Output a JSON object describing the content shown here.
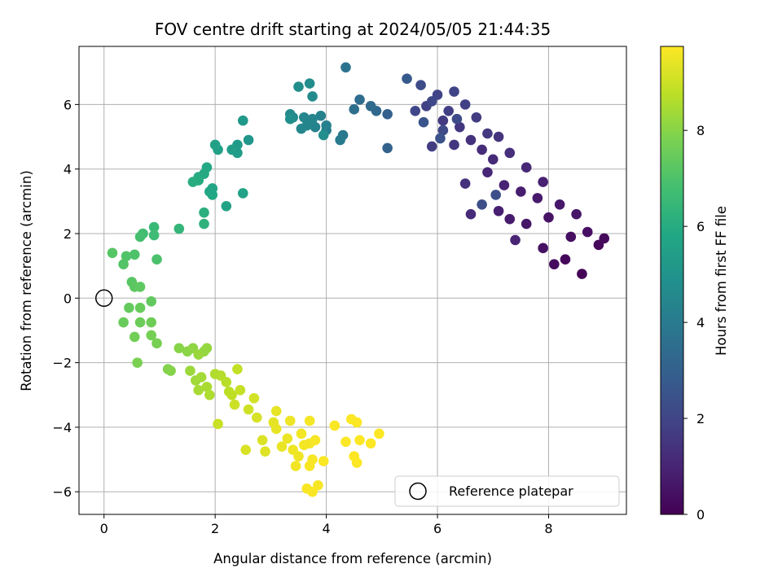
{
  "chart_data": {
    "type": "scatter",
    "title": "FOV centre drift starting at 2024/05/05 21:44:35",
    "xlabel": "Angular distance from reference (arcmin)",
    "ylabel": "Rotation from reference (arcmin)",
    "xlim": [
      -0.45,
      9.4
    ],
    "ylim": [
      -6.7,
      7.8
    ],
    "x_ticks": [
      0,
      2,
      4,
      6,
      8
    ],
    "y_ticks": [
      -6,
      -4,
      -2,
      0,
      2,
      4,
      6
    ],
    "grid": true,
    "colorbar": {
      "label": "Hours from first FF file",
      "range": [
        0,
        9.75
      ],
      "ticks": [
        0,
        2,
        4,
        6,
        8
      ],
      "colormap": "viridis"
    },
    "reference_point": {
      "x": 0,
      "y": 0,
      "label": "Reference platepar",
      "marker": "open-circle"
    },
    "legend": {
      "position": "lower-right",
      "entries": [
        "Reference platepar"
      ]
    },
    "series": [
      {
        "color_by": "hours",
        "points": [
          {
            "x": 8.6,
            "y": 0.75,
            "h": 0.05
          },
          {
            "x": 8.3,
            "y": 1.2,
            "h": 0.15
          },
          {
            "x": 8.9,
            "y": 1.65,
            "h": 0.2
          },
          {
            "x": 9.0,
            "y": 1.85,
            "h": 0.25
          },
          {
            "x": 8.1,
            "y": 1.05,
            "h": 0.3
          },
          {
            "x": 8.4,
            "y": 1.9,
            "h": 0.35
          },
          {
            "x": 8.7,
            "y": 2.05,
            "h": 0.4
          },
          {
            "x": 7.9,
            "y": 1.55,
            "h": 0.45
          },
          {
            "x": 8.0,
            "y": 2.5,
            "h": 0.5
          },
          {
            "x": 8.5,
            "y": 2.6,
            "h": 0.55
          },
          {
            "x": 7.6,
            "y": 2.3,
            "h": 0.6
          },
          {
            "x": 8.2,
            "y": 2.9,
            "h": 0.65
          },
          {
            "x": 7.8,
            "y": 3.1,
            "h": 0.7
          },
          {
            "x": 7.3,
            "y": 2.45,
            "h": 0.75
          },
          {
            "x": 7.5,
            "y": 3.3,
            "h": 0.8
          },
          {
            "x": 7.1,
            "y": 2.7,
            "h": 0.85
          },
          {
            "x": 7.9,
            "y": 3.6,
            "h": 0.9
          },
          {
            "x": 7.2,
            "y": 3.5,
            "h": 0.95
          },
          {
            "x": 7.4,
            "y": 1.8,
            "h": 1.0
          },
          {
            "x": 6.9,
            "y": 3.9,
            "h": 1.05
          },
          {
            "x": 7.6,
            "y": 4.05,
            "h": 1.1
          },
          {
            "x": 6.6,
            "y": 2.6,
            "h": 1.15
          },
          {
            "x": 7.0,
            "y": 4.3,
            "h": 1.2
          },
          {
            "x": 6.8,
            "y": 4.6,
            "h": 1.25
          },
          {
            "x": 7.3,
            "y": 4.5,
            "h": 1.3
          },
          {
            "x": 6.5,
            "y": 3.55,
            "h": 1.35
          },
          {
            "x": 6.6,
            "y": 4.9,
            "h": 1.4
          },
          {
            "x": 7.1,
            "y": 5.0,
            "h": 1.45
          },
          {
            "x": 6.3,
            "y": 4.75,
            "h": 1.5
          },
          {
            "x": 6.4,
            "y": 5.3,
            "h": 1.55
          },
          {
            "x": 6.9,
            "y": 5.1,
            "h": 1.6
          },
          {
            "x": 6.1,
            "y": 5.5,
            "h": 1.65
          },
          {
            "x": 6.7,
            "y": 5.6,
            "h": 1.7
          },
          {
            "x": 5.9,
            "y": 4.7,
            "h": 1.75
          },
          {
            "x": 6.2,
            "y": 5.8,
            "h": 1.8
          },
          {
            "x": 6.5,
            "y": 6.0,
            "h": 1.85
          },
          {
            "x": 5.8,
            "y": 5.95,
            "h": 1.9
          },
          {
            "x": 6.0,
            "y": 6.3,
            "h": 1.95
          },
          {
            "x": 6.3,
            "y": 6.4,
            "h": 2.0
          },
          {
            "x": 5.6,
            "y": 5.8,
            "h": 2.05
          },
          {
            "x": 5.9,
            "y": 6.1,
            "h": 2.1
          },
          {
            "x": 6.1,
            "y": 5.2,
            "h": 2.15
          },
          {
            "x": 5.7,
            "y": 6.6,
            "h": 2.2
          },
          {
            "x": 6.35,
            "y": 5.55,
            "h": 2.25
          },
          {
            "x": 6.8,
            "y": 2.9,
            "h": 2.3
          },
          {
            "x": 7.05,
            "y": 3.2,
            "h": 2.35
          },
          {
            "x": 6.05,
            "y": 4.95,
            "h": 2.45
          },
          {
            "x": 5.75,
            "y": 5.45,
            "h": 2.55
          },
          {
            "x": 5.45,
            "y": 6.8,
            "h": 2.75
          },
          {
            "x": 5.1,
            "y": 5.7,
            "h": 3.0
          },
          {
            "x": 5.1,
            "y": 4.65,
            "h": 3.1
          },
          {
            "x": 4.9,
            "y": 5.8,
            "h": 3.25
          },
          {
            "x": 4.8,
            "y": 5.95,
            "h": 3.35
          },
          {
            "x": 4.6,
            "y": 6.15,
            "h": 3.45
          },
          {
            "x": 4.5,
            "y": 5.85,
            "h": 3.55
          },
          {
            "x": 4.35,
            "y": 7.15,
            "h": 3.7
          },
          {
            "x": 4.3,
            "y": 5.05,
            "h": 3.9
          },
          {
            "x": 4.25,
            "y": 4.9,
            "h": 4.0
          },
          {
            "x": 4.0,
            "y": 5.2,
            "h": 4.1
          },
          {
            "x": 4.0,
            "y": 5.35,
            "h": 4.2
          },
          {
            "x": 3.9,
            "y": 5.65,
            "h": 4.25
          },
          {
            "x": 3.8,
            "y": 5.3,
            "h": 4.3
          },
          {
            "x": 3.75,
            "y": 5.55,
            "h": 4.35
          },
          {
            "x": 3.65,
            "y": 5.35,
            "h": 4.4
          },
          {
            "x": 3.6,
            "y": 5.6,
            "h": 4.45
          },
          {
            "x": 3.55,
            "y": 5.25,
            "h": 4.5
          },
          {
            "x": 3.4,
            "y": 5.6,
            "h": 4.55
          },
          {
            "x": 3.35,
            "y": 5.7,
            "h": 4.6
          },
          {
            "x": 3.75,
            "y": 6.25,
            "h": 4.65
          },
          {
            "x": 3.7,
            "y": 6.65,
            "h": 4.7
          },
          {
            "x": 3.5,
            "y": 6.55,
            "h": 4.75
          },
          {
            "x": 3.95,
            "y": 5.05,
            "h": 4.8
          },
          {
            "x": 3.35,
            "y": 5.55,
            "h": 4.85
          },
          {
            "x": 2.6,
            "y": 4.9,
            "h": 5.1
          },
          {
            "x": 2.5,
            "y": 5.5,
            "h": 5.2
          },
          {
            "x": 2.4,
            "y": 4.75,
            "h": 5.3
          },
          {
            "x": 2.4,
            "y": 4.5,
            "h": 5.35
          },
          {
            "x": 2.3,
            "y": 4.6,
            "h": 5.4
          },
          {
            "x": 2.05,
            "y": 4.6,
            "h": 5.5
          },
          {
            "x": 2.0,
            "y": 4.75,
            "h": 5.55
          },
          {
            "x": 2.5,
            "y": 3.25,
            "h": 5.6
          },
          {
            "x": 2.2,
            "y": 2.85,
            "h": 5.65
          },
          {
            "x": 1.95,
            "y": 3.4,
            "h": 5.7
          },
          {
            "x": 1.9,
            "y": 3.3,
            "h": 5.75
          },
          {
            "x": 1.95,
            "y": 3.2,
            "h": 5.8
          },
          {
            "x": 1.85,
            "y": 4.05,
            "h": 5.85
          },
          {
            "x": 1.8,
            "y": 3.85,
            "h": 5.9
          },
          {
            "x": 1.7,
            "y": 3.75,
            "h": 5.95
          },
          {
            "x": 1.7,
            "y": 3.65,
            "h": 6.0
          },
          {
            "x": 1.6,
            "y": 3.6,
            "h": 6.05
          },
          {
            "x": 1.8,
            "y": 2.65,
            "h": 6.15
          },
          {
            "x": 1.8,
            "y": 2.3,
            "h": 6.25
          },
          {
            "x": 1.35,
            "y": 2.15,
            "h": 6.4
          },
          {
            "x": 0.9,
            "y": 2.2,
            "h": 6.55
          },
          {
            "x": 0.9,
            "y": 1.95,
            "h": 6.65
          },
          {
            "x": 0.7,
            "y": 2.0,
            "h": 6.75
          },
          {
            "x": 0.65,
            "y": 1.9,
            "h": 6.85
          },
          {
            "x": 0.95,
            "y": 1.2,
            "h": 6.95
          },
          {
            "x": 0.55,
            "y": 1.35,
            "h": 7.0
          },
          {
            "x": 0.4,
            "y": 1.3,
            "h": 7.05
          },
          {
            "x": 0.35,
            "y": 1.05,
            "h": 7.1
          },
          {
            "x": 0.15,
            "y": 1.4,
            "h": 7.15
          },
          {
            "x": 0.5,
            "y": 0.5,
            "h": 7.2
          },
          {
            "x": 0.55,
            "y": 0.35,
            "h": 7.25
          },
          {
            "x": 0.65,
            "y": 0.35,
            "h": 7.3
          },
          {
            "x": 0.85,
            "y": -0.1,
            "h": 7.35
          },
          {
            "x": 0.45,
            "y": -0.3,
            "h": 7.4
          },
          {
            "x": 0.65,
            "y": -0.3,
            "h": 7.45
          },
          {
            "x": 0.35,
            "y": -0.75,
            "h": 7.5
          },
          {
            "x": 0.65,
            "y": -0.75,
            "h": 7.55
          },
          {
            "x": 0.85,
            "y": -0.75,
            "h": 7.6
          },
          {
            "x": 0.55,
            "y": -1.2,
            "h": 7.65
          },
          {
            "x": 0.85,
            "y": -1.15,
            "h": 7.7
          },
          {
            "x": 0.95,
            "y": -1.4,
            "h": 7.75
          },
          {
            "x": 0.6,
            "y": -2.0,
            "h": 7.8
          },
          {
            "x": 1.15,
            "y": -2.2,
            "h": 7.9
          },
          {
            "x": 1.2,
            "y": -2.25,
            "h": 7.95
          },
          {
            "x": 1.35,
            "y": -1.55,
            "h": 8.0
          },
          {
            "x": 1.5,
            "y": -1.65,
            "h": 8.05
          },
          {
            "x": 1.6,
            "y": -1.55,
            "h": 8.1
          },
          {
            "x": 1.8,
            "y": -1.65,
            "h": 8.15
          },
          {
            "x": 1.85,
            "y": -1.55,
            "h": 8.2
          },
          {
            "x": 1.7,
            "y": -1.75,
            "h": 8.25
          },
          {
            "x": 1.55,
            "y": -2.25,
            "h": 8.3
          },
          {
            "x": 1.65,
            "y": -2.55,
            "h": 8.35
          },
          {
            "x": 1.75,
            "y": -2.45,
            "h": 8.4
          },
          {
            "x": 1.7,
            "y": -2.85,
            "h": 8.45
          },
          {
            "x": 1.85,
            "y": -2.75,
            "h": 8.5
          },
          {
            "x": 1.9,
            "y": -3.0,
            "h": 8.55
          },
          {
            "x": 2.0,
            "y": -2.35,
            "h": 8.6
          },
          {
            "x": 2.1,
            "y": -2.4,
            "h": 8.65
          },
          {
            "x": 2.2,
            "y": -2.6,
            "h": 8.7
          },
          {
            "x": 2.25,
            "y": -2.9,
            "h": 8.75
          },
          {
            "x": 2.3,
            "y": -3.0,
            "h": 8.8
          },
          {
            "x": 2.4,
            "y": -2.2,
            "h": 8.85
          },
          {
            "x": 2.45,
            "y": -2.85,
            "h": 8.9
          },
          {
            "x": 2.05,
            "y": -3.9,
            "h": 8.95
          },
          {
            "x": 2.35,
            "y": -3.3,
            "h": 9.0
          },
          {
            "x": 2.6,
            "y": -3.45,
            "h": 9.05
          },
          {
            "x": 2.7,
            "y": -3.1,
            "h": 9.1
          },
          {
            "x": 2.75,
            "y": -3.7,
            "h": 9.15
          },
          {
            "x": 2.55,
            "y": -4.7,
            "h": 9.2
          },
          {
            "x": 2.85,
            "y": -4.4,
            "h": 9.25
          },
          {
            "x": 2.9,
            "y": -4.75,
            "h": 9.3
          },
          {
            "x": 3.05,
            "y": -3.85,
            "h": 9.35
          },
          {
            "x": 3.1,
            "y": -3.5,
            "h": 9.4
          },
          {
            "x": 3.1,
            "y": -4.05,
            "h": 9.42
          },
          {
            "x": 3.2,
            "y": -4.6,
            "h": 9.45
          },
          {
            "x": 3.3,
            "y": -4.35,
            "h": 9.48
          },
          {
            "x": 3.35,
            "y": -3.8,
            "h": 9.5
          },
          {
            "x": 3.4,
            "y": -4.7,
            "h": 9.52
          },
          {
            "x": 3.5,
            "y": -4.9,
            "h": 9.54
          },
          {
            "x": 3.45,
            "y": -5.2,
            "h": 9.56
          },
          {
            "x": 3.55,
            "y": -4.2,
            "h": 9.58
          },
          {
            "x": 3.6,
            "y": -4.55,
            "h": 9.6
          },
          {
            "x": 3.7,
            "y": -4.5,
            "h": 9.62
          },
          {
            "x": 3.7,
            "y": -3.8,
            "h": 9.63
          },
          {
            "x": 3.75,
            "y": -5.0,
            "h": 9.64
          },
          {
            "x": 3.8,
            "y": -4.4,
            "h": 9.65
          },
          {
            "x": 3.85,
            "y": -5.8,
            "h": 9.66
          },
          {
            "x": 3.7,
            "y": -5.2,
            "h": 9.67
          },
          {
            "x": 3.65,
            "y": -5.9,
            "h": 9.68
          },
          {
            "x": 3.75,
            "y": -6.0,
            "h": 9.69
          },
          {
            "x": 3.95,
            "y": -5.05,
            "h": 9.7
          },
          {
            "x": 4.15,
            "y": -3.95,
            "h": 9.71
          },
          {
            "x": 4.35,
            "y": -4.45,
            "h": 9.72
          },
          {
            "x": 4.45,
            "y": -3.75,
            "h": 9.73
          },
          {
            "x": 4.5,
            "y": -4.9,
            "h": 9.73
          },
          {
            "x": 4.55,
            "y": -3.85,
            "h": 9.74
          },
          {
            "x": 4.55,
            "y": -5.1,
            "h": 9.74
          },
          {
            "x": 4.6,
            "y": -4.4,
            "h": 9.75
          },
          {
            "x": 4.8,
            "y": -4.5,
            "h": 9.75
          },
          {
            "x": 4.95,
            "y": -4.2,
            "h": 9.75
          }
        ]
      }
    ]
  }
}
